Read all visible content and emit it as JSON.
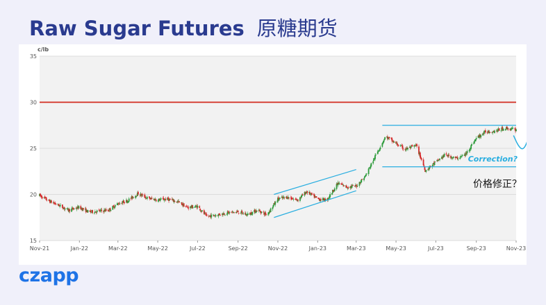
{
  "header": {
    "title_en": "Raw Sugar Futures",
    "title_cn": "原糖期货"
  },
  "logo": {
    "text": "czapp"
  },
  "colors": {
    "title": "#2a3b8f",
    "up_candle": "#2e9b3c",
    "down_candle": "#d42a2a",
    "resistance_line": "#d22a1e",
    "trend_lines": "#29aee0",
    "plot_background": "#f2f2f2",
    "logo": "#1e73e6"
  },
  "chart_data": {
    "type": "candlestick",
    "unit_label": "c/lb",
    "ylim": [
      15,
      35
    ],
    "yticks": [
      15,
      20,
      25,
      30,
      35
    ],
    "x_tick_labels": [
      "Nov-21",
      "Jan-22",
      "Mar-22",
      "May-22",
      "Jul-22",
      "Sep-22",
      "Nov-22",
      "Jan-23",
      "Mar-23",
      "May-23",
      "Jul-23",
      "Sep-23",
      "Nov-23"
    ],
    "x_range": [
      "2021-11-01",
      "2023-11-01"
    ],
    "grid": "horizontal",
    "price_path": [
      [
        "2021-11-01",
        19.9
      ],
      [
        "2021-11-15",
        19.3
      ],
      [
        "2021-12-01",
        18.8
      ],
      [
        "2021-12-15",
        18.3
      ],
      [
        "2022-01-01",
        18.6
      ],
      [
        "2022-01-15",
        18.1
      ],
      [
        "2022-02-01",
        18.2
      ],
      [
        "2022-02-15",
        18.3
      ],
      [
        "2022-03-01",
        19.0
      ],
      [
        "2022-03-15",
        19.3
      ],
      [
        "2022-04-01",
        20.1
      ],
      [
        "2022-04-15",
        19.6
      ],
      [
        "2022-05-01",
        19.4
      ],
      [
        "2022-05-15",
        19.5
      ],
      [
        "2022-06-01",
        19.2
      ],
      [
        "2022-06-15",
        18.6
      ],
      [
        "2022-07-01",
        18.7
      ],
      [
        "2022-07-15",
        17.6
      ],
      [
        "2022-08-01",
        17.8
      ],
      [
        "2022-08-15",
        18.0
      ],
      [
        "2022-09-01",
        18.1
      ],
      [
        "2022-09-15",
        17.8
      ],
      [
        "2022-10-01",
        18.3
      ],
      [
        "2022-10-15",
        17.8
      ],
      [
        "2022-11-01",
        19.5
      ],
      [
        "2022-11-15",
        19.7
      ],
      [
        "2022-12-01",
        19.4
      ],
      [
        "2022-12-15",
        20.3
      ],
      [
        "2023-01-01",
        19.5
      ],
      [
        "2023-01-15",
        19.4
      ],
      [
        "2023-02-01",
        21.2
      ],
      [
        "2023-02-15",
        20.8
      ],
      [
        "2023-03-01",
        20.9
      ],
      [
        "2023-03-15",
        22.0
      ],
      [
        "2023-04-01",
        24.4
      ],
      [
        "2023-04-15",
        26.3
      ],
      [
        "2023-05-01",
        25.5
      ],
      [
        "2023-05-15",
        24.9
      ],
      [
        "2023-06-01",
        25.3
      ],
      [
        "2023-06-15",
        22.6
      ],
      [
        "2023-07-01",
        23.5
      ],
      [
        "2023-07-15",
        24.3
      ],
      [
        "2023-08-01",
        23.9
      ],
      [
        "2023-08-15",
        24.3
      ],
      [
        "2023-09-01",
        26.1
      ],
      [
        "2023-09-15",
        26.8
      ],
      [
        "2023-10-01",
        26.9
      ],
      [
        "2023-10-15",
        27.2
      ],
      [
        "2023-11-01",
        27.0
      ]
    ],
    "resistance_level": 30,
    "channel_upper": [
      [
        "2022-10-26",
        20.0
      ],
      [
        "2023-03-01",
        22.7
      ]
    ],
    "channel_lower": [
      [
        "2022-10-26",
        17.5
      ],
      [
        "2023-03-01",
        20.4
      ]
    ],
    "range_top": [
      [
        "2023-04-10",
        27.5
      ],
      [
        "2023-11-01",
        27.5
      ]
    ],
    "range_bottom": [
      [
        "2023-04-10",
        23.0
      ],
      [
        "2023-11-01",
        23.0
      ]
    ],
    "projection_path": [
      [
        "2023-10-28",
        26.4
      ],
      [
        "2023-11-04",
        25.3
      ],
      [
        "2023-11-11",
        24.8
      ],
      [
        "2023-11-18",
        25.6
      ],
      [
        "2023-11-24",
        27.5
      ],
      [
        "2023-11-27",
        28.9
      ]
    ],
    "annotations": {
      "correction": "Correction?",
      "correction_cn": "价格修正？"
    }
  }
}
